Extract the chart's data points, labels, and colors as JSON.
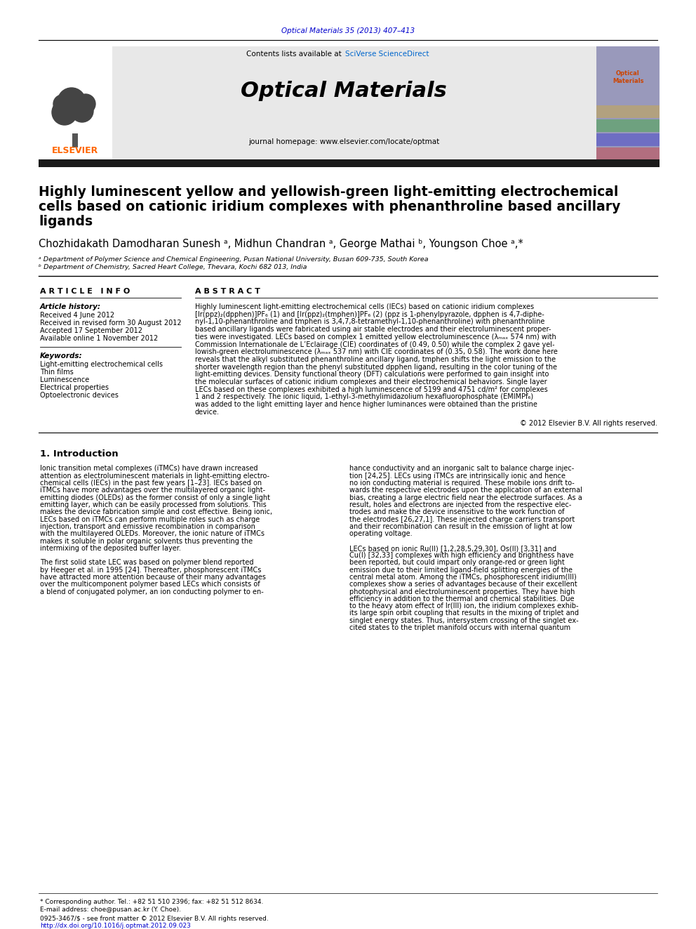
{
  "journal_ref": "Optical Materials 35 (2013) 407–413",
  "journal_ref_color": "#0000cc",
  "sciverse_color": "#0066cc",
  "journal_name": "Optical Materials",
  "journal_homepage": "journal homepage: www.elsevier.com/locate/optmat",
  "header_bg": "#e8e8e8",
  "dark_bar_color": "#1a1a1a",
  "title_line1": "Highly luminescent yellow and yellowish-green light-emitting electrochemical",
  "title_line2": "cells based on cationic iridium complexes with phenanthroline based ancillary",
  "title_line3": "ligands",
  "authors_line": "Chozhidakath Damodharan Sunesh ᵃ, Midhun Chandran ᵃ, George Mathai ᵇ, Youngson Choe ᵃ,*",
  "affiliation_a": "ᵃ Department of Polymer Science and Chemical Engineering, Pusan National University, Busan 609-735, South Korea",
  "affiliation_b": "ᵇ Department of Chemistry, Sacred Heart College, Thevara, Kochi 682 013, India",
  "article_info_header": "A R T I C L E   I N F O",
  "abstract_header": "A B S T R A C T",
  "history_label": "Article history:",
  "history_lines": [
    "Received 4 June 2012",
    "Received in revised form 30 August 2012",
    "Accepted 17 September 2012",
    "Available online 1 November 2012"
  ],
  "keywords_label": "Keywords:",
  "keywords": [
    "Light-emitting electrochemical cells",
    "Thin films",
    "Luminescence",
    "Electrical properties",
    "Optoelectronic devices"
  ],
  "abstract_lines": [
    "Highly luminescent light-emitting electrochemical cells (IECs) based on cationic iridium complexes",
    "[Ir(ppz)₂(dpphen)]PF₆ (1) and [Ir(ppz)₂(tmphen)]PF₆ (2) (ppz is 1-phenylpyrazole, dpphen is 4,7-diphe-",
    "nyl-1,10-phenanthroline and tmphen is 3,4,7,8-tetramethyl-1,10-phenanthroline) with phenanthroline",
    "based ancillary ligands were fabricated using air stable electrodes and their electroluminescent proper-",
    "ties were investigated. LECs based on complex 1 emitted yellow electroluminescence (λₘₐₓ 574 nm) with",
    "Commission Internationale de L’Eclairage (CIE) coordinates of (0.49, 0.50) while the complex 2 gave yel-",
    "lowish-green electroluminescence (λₘₐₓ 537 nm) with CIE coordinates of (0.35, 0.58). The work done here",
    "reveals that the alkyl substituted phenanthroline ancillary ligand, tmphen shifts the light emission to the",
    "shorter wavelength region than the phenyl substituted dpphen ligand, resulting in the color tuning of the",
    "light-emitting devices. Density functional theory (DFT) calculations were performed to gain insight into",
    "the molecular surfaces of cationic iridium complexes and their electrochemical behaviors. Single layer",
    "LECs based on these complexes exhibited a high luminescence of 5199 and 4751 cd/m² for complexes",
    "1 and 2 respectively. The ionic liquid, 1-ethyl-3-methylimidazolium hexafluorophosphate (EMIMPf₆)",
    "was added to the light emitting layer and hence higher luminances were obtained than the pristine",
    "device."
  ],
  "copyright": "© 2012 Elsevier B.V. All rights reserved.",
  "intro_heading": "1. Introduction",
  "intro_col1_lines": [
    "Ionic transition metal complexes (iTMCs) have drawn increased",
    "attention as electroluminescent materials in light-emitting electro-",
    "chemical cells (IECs) in the past few years [1–23]. IECs based on",
    "iTMCs have more advantages over the multilayered organic light-",
    "emitting diodes (OLEDs) as the former consist of only a single light",
    "emitting layer, which can be easily processed from solutions. This",
    "makes the device fabrication simple and cost effective. Being ionic,",
    "LECs based on iTMCs can perform multiple roles such as charge",
    "injection, transport and emissive recombination in comparison",
    "with the multilayered OLEDs. Moreover, the ionic nature of iTMCs",
    "makes it soluble in polar organic solvents thus preventing the",
    "intermixing of the deposited buffer layer.",
    "",
    "The first solid state LEC was based on polymer blend reported",
    "by Heeger et al. in 1995 [24]. Thereafter, phosphorescent iTMCs",
    "have attracted more attention because of their many advantages",
    "over the multicomponent polymer based LECs which consists of",
    "a blend of conjugated polymer, an ion conducting polymer to en-"
  ],
  "intro_col2_lines": [
    "hance conductivity and an inorganic salt to balance charge injec-",
    "tion [24,25]. LECs using iTMCs are intrinsically ionic and hence",
    "no ion conducting material is required. These mobile ions drift to-",
    "wards the respective electrodes upon the application of an external",
    "bias, creating a large electric field near the electrode surfaces. As a",
    "result, holes and electrons are injected from the respective elec-",
    "trodes and make the device insensitive to the work function of",
    "the electrodes [26,27,1]. These injected charge carriers transport",
    "and their recombination can result in the emission of light at low",
    "operating voltage.",
    "",
    "LECs based on ionic Ru(II) [1,2,28,5,29,30], Os(II) [3,31] and",
    "Cu(I) [32,33] complexes with high efficiency and brightness have",
    "been reported, but could impart only orange-red or green light",
    "emission due to their limited ligand-field splitting energies of the",
    "central metal atom. Among the iTMCs, phosphorescent iridium(III)",
    "complexes show a series of advantages because of their excellent",
    "photophysical and electroluminescent properties. They have high",
    "efficiency in addition to the thermal and chemical stabilities. Due",
    "to the heavy atom effect of Ir(III) ion, the iridium complexes exhib-",
    "its large spin orbit coupling that results in the mixing of triplet and",
    "singlet energy states. Thus, intersystem crossing of the singlet ex-",
    "cited states to the triplet manifold occurs with internal quantum"
  ],
  "footnote_star": "* Corresponding author. Tel.: +82 51 510 2396; fax: +82 51 512 8634.",
  "footnote_email": "E-mail address: choe@pusan.ac.kr (Y. Choe).",
  "footer_issn": "0925-3467/$ - see front matter © 2012 Elsevier B.V. All rights reserved.",
  "footer_doi": "http://dx.doi.org/10.1016/j.optmat.2012.09.023",
  "bg_color": "#ffffff",
  "link_color": "#0000cc",
  "elsevier_color": "#ff6600"
}
